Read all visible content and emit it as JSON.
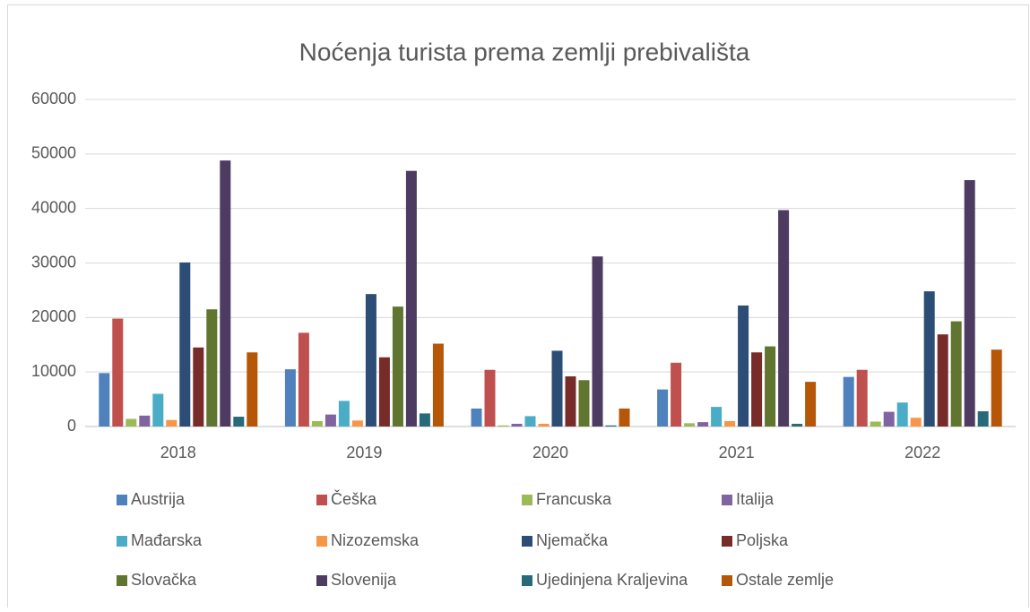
{
  "chart_data": {
    "type": "bar",
    "title": "Noćenja turista prema zemlji prebivališta",
    "categories": [
      "2018",
      "2019",
      "2020",
      "2021",
      "2022"
    ],
    "series": [
      {
        "name": "Austrija",
        "color": "#4f81bd",
        "values": [
          9800,
          10500,
          3300,
          6800,
          9100
        ]
      },
      {
        "name": "Češka",
        "color": "#c0504d",
        "values": [
          19800,
          17200,
          10400,
          11700,
          10400
        ]
      },
      {
        "name": "Francuska",
        "color": "#9bbb59",
        "values": [
          1400,
          1000,
          200,
          600,
          900
        ]
      },
      {
        "name": "Italija",
        "color": "#8064a2",
        "values": [
          2000,
          2200,
          500,
          800,
          2700
        ]
      },
      {
        "name": "Mađarska",
        "color": "#4bacc6",
        "values": [
          6000,
          4700,
          1900,
          3600,
          4400
        ]
      },
      {
        "name": "Nizozemska",
        "color": "#f79646",
        "values": [
          1200,
          1100,
          500,
          1000,
          1600
        ]
      },
      {
        "name": "Njemačka",
        "color": "#2c4d75",
        "values": [
          30100,
          24300,
          13900,
          22200,
          24800
        ]
      },
      {
        "name": "Poljska",
        "color": "#772c2a",
        "values": [
          14500,
          12700,
          9200,
          13600,
          16900
        ]
      },
      {
        "name": "Slovačka",
        "color": "#5f7530",
        "values": [
          21500,
          22000,
          8500,
          14700,
          19300
        ]
      },
      {
        "name": "Slovenija",
        "color": "#4d3b62",
        "values": [
          48800,
          46900,
          31200,
          39700,
          45200
        ]
      },
      {
        "name": "Ujedinjena Kraljevina",
        "color": "#276a7c",
        "values": [
          1800,
          2400,
          200,
          500,
          2800
        ]
      },
      {
        "name": "Ostale zemlje",
        "color": "#b65708",
        "values": [
          13600,
          15200,
          3300,
          8200,
          14100
        ]
      }
    ],
    "ylim": [
      0,
      60000
    ],
    "yticks": [
      0,
      10000,
      20000,
      30000,
      40000,
      50000,
      60000
    ],
    "grid": true,
    "legend": "bottom"
  }
}
